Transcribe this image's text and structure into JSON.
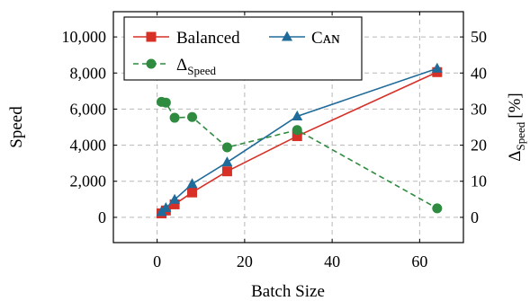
{
  "chart_data": {
    "type": "line",
    "xlabel": "Batch Size",
    "ylabel": "Speed",
    "y2label": "ΔSpeed [%]",
    "y2label_main": "Δ",
    "y2label_sub": "Speed",
    "y2label_unit": "[%]",
    "xlim": [
      -10,
      70
    ],
    "ylim": [
      -1400,
      11400
    ],
    "y2lim": [
      -7,
      57
    ],
    "xticks": [
      0,
      20,
      40,
      60
    ],
    "xtick_labels": [
      "0",
      "20",
      "40",
      "60"
    ],
    "yticks": [
      0,
      2000,
      4000,
      6000,
      8000,
      10000
    ],
    "ytick_labels": [
      "0",
      "2,000",
      "4,000",
      "6,000",
      "8,000",
      "10,000"
    ],
    "y2ticks": [
      0,
      10,
      20,
      30,
      40,
      50
    ],
    "y2tick_labels": [
      "0",
      "10",
      "20",
      "30",
      "40",
      "50"
    ],
    "grid": true,
    "legend_position": "top-left",
    "series": [
      {
        "name": "Balanced",
        "axis": "left",
        "color": "#d73027",
        "marker": "square",
        "line_style": "solid",
        "x": [
          1,
          2,
          4,
          8,
          16,
          32,
          64
        ],
        "values": [
          220,
          380,
          720,
          1380,
          2550,
          4500,
          8050
        ]
      },
      {
        "name": "CAN",
        "name_display": "Cᴀɴ",
        "axis": "left",
        "color": "#1f6b9a",
        "marker": "triangle",
        "line_style": "solid",
        "x": [
          1,
          2,
          4,
          8,
          16,
          32,
          64
        ],
        "values": [
          300,
          520,
          980,
          1850,
          3050,
          5600,
          8250
        ]
      },
      {
        "name": "ΔSpeed",
        "name_main": "Δ",
        "name_sub": "Speed",
        "axis": "right",
        "color": "#2e8b3f",
        "marker": "circle",
        "line_style": "dashed",
        "x": [
          1,
          2,
          4,
          8,
          16,
          32,
          64
        ],
        "values": [
          32,
          31.8,
          27.6,
          27.8,
          19.4,
          24.2,
          2.5
        ]
      }
    ]
  }
}
